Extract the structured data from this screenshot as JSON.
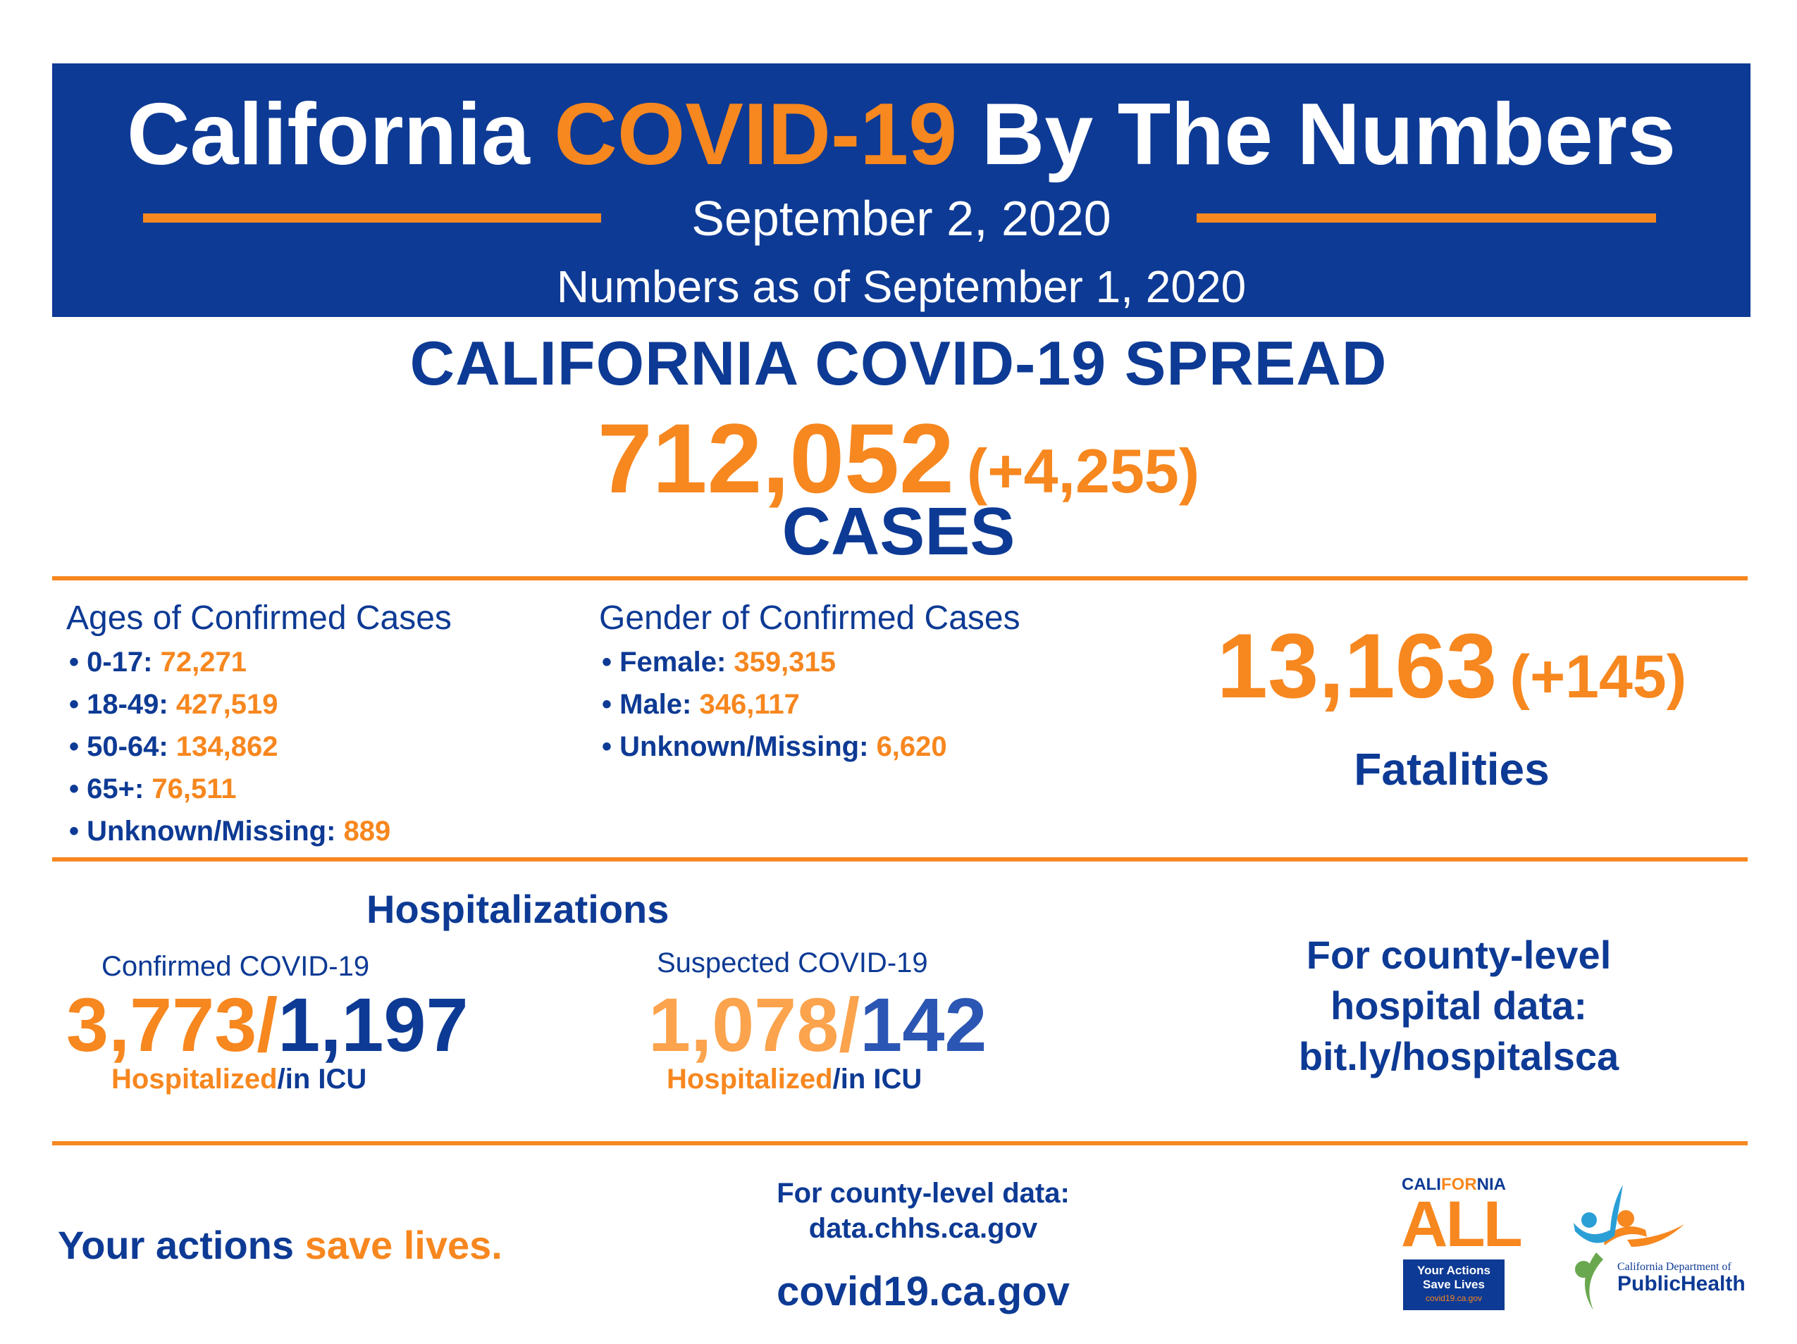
{
  "header": {
    "title_part1": "California",
    "title_part2": "COVID-19",
    "title_part3": "By The Numbers",
    "date": "September 2, 2020",
    "as_of": "Numbers as of September 1, 2020"
  },
  "spread": {
    "title": "CALIFORNIA COVID-19 SPREAD",
    "total": "712,052",
    "delta": "(+4,255)",
    "label": "CASES"
  },
  "ages": {
    "heading": "Ages of Confirmed Cases",
    "items": [
      {
        "label": "• 0-17:",
        "value": "72,271"
      },
      {
        "label": "• 18-49:",
        "value": "427,519"
      },
      {
        "label": "• 50-64:",
        "value": "134,862"
      },
      {
        "label": "• 65+:",
        "value": "76,511"
      },
      {
        "label": "• Unknown/Missing:",
        "value": "889"
      }
    ]
  },
  "gender": {
    "heading": "Gender of Confirmed Cases",
    "items": [
      {
        "label": "• Female:",
        "value": "359,315"
      },
      {
        "label": "• Male:",
        "value": "346,117"
      },
      {
        "label": "• Unknown/Missing:",
        "value": "6,620"
      }
    ]
  },
  "fatalities": {
    "total": "13,163",
    "delta": "(+145)",
    "label": "Fatalities"
  },
  "hospitalizations": {
    "title": "Hospitalizations",
    "confirmed": {
      "label": "Confirmed COVID-19",
      "hospitalized": "3,773/",
      "icu": "1,197",
      "caption_hosp": "Hospitalized",
      "caption_icu": "/in ICU"
    },
    "suspected": {
      "label": "Suspected COVID-19",
      "hospitalized": "1,078/",
      "icu": "142",
      "caption_hosp": "Hospitalized",
      "caption_icu": "/in ICU"
    },
    "county_line1": "For county-level",
    "county_line2": "hospital data:",
    "county_line3": "bit.ly/hospitalsca"
  },
  "footer": {
    "tagline_part1": "Your actions ",
    "tagline_part2": "save lives.",
    "county_data_line1": "For county-level data:",
    "county_data_line2": "data.chhs.ca.gov",
    "website": "covid19.ca.gov"
  },
  "logos": {
    "caall": {
      "top_part1": "CALI",
      "top_part2": "FOR",
      "top_part3": "NIA",
      "main": "ALL",
      "box_line1": "Your Actions",
      "box_line2": "Save Lives",
      "box_line3": "covid19.ca.gov"
    },
    "cdph": {
      "line1": "California Department of",
      "line2": "PublicHealth"
    }
  },
  "colors": {
    "navy": "#0d3a94",
    "orange": "#f7871f"
  }
}
